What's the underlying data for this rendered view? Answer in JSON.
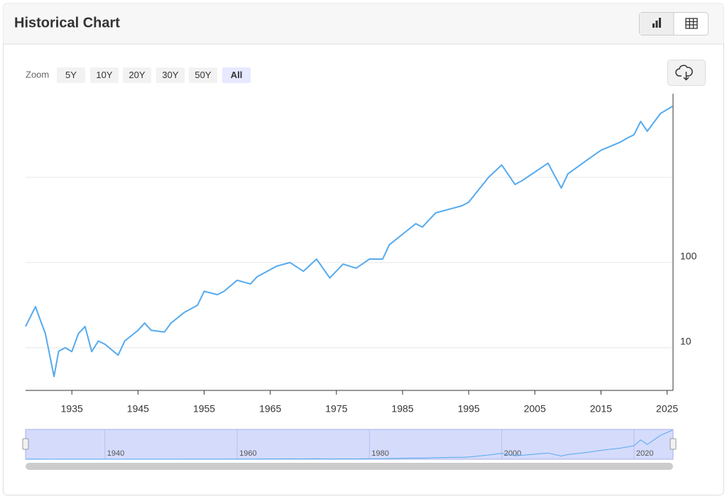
{
  "header": {
    "title": "Historical Chart"
  },
  "zoom": {
    "label": "Zoom",
    "buttons": [
      "5Y",
      "10Y",
      "20Y",
      "30Y",
      "50Y",
      "All"
    ],
    "selected": 5
  },
  "chart_data": {
    "type": "line",
    "log_scale": true,
    "grid": true,
    "x": [
      1928,
      1929.5,
      1930,
      1931,
      1932.3,
      1933,
      1934,
      1935,
      1936,
      1937,
      1938,
      1939,
      1940,
      1942,
      1943,
      1945,
      1946,
      1947,
      1949,
      1950,
      1952,
      1954,
      1955,
      1957,
      1958,
      1960,
      1962,
      1963,
      1966,
      1968,
      1970,
      1972,
      1974,
      1976,
      1978,
      1980,
      1982,
      1983,
      1987,
      1988,
      1990,
      1994,
      1995,
      1998,
      2000,
      2002,
      2003,
      2007,
      2009,
      2010,
      2013,
      2015,
      2018,
      2019,
      2020,
      2021,
      2022,
      2024,
      2025.8
    ],
    "series": [
      {
        "color": "#55aaee",
        "values": [
          17.8,
          30.4,
          23.7,
          14.7,
          4.6,
          9.1,
          10,
          9,
          14.7,
          17.8,
          9,
          12,
          11,
          8.2,
          12,
          16,
          19.5,
          16,
          15.3,
          19.5,
          26,
          31.6,
          46,
          42,
          46,
          62,
          56,
          68,
          91,
          100,
          79,
          110,
          66,
          96,
          86,
          110,
          110,
          162,
          286,
          261,
          383,
          464,
          511,
          1000,
          1400,
          825,
          909,
          1468,
          750,
          1100,
          1620,
          2080,
          2610,
          2900,
          3160,
          4530,
          3480,
          5620,
          6810
        ]
      }
    ],
    "xlim": [
      1928,
      2025.9
    ],
    "xticks": [
      1935,
      1945,
      1955,
      1965,
      1975,
      1985,
      1995,
      2005,
      2015,
      2025
    ],
    "ylim": [
      3.16,
      9600
    ],
    "yticks": [
      10,
      100
    ],
    "ygrid": [
      10,
      100,
      1000
    ],
    "navigator": {
      "ylim": [
        0,
        7000
      ],
      "xticks": [
        1940,
        1960,
        1980,
        2000,
        2020
      ]
    }
  }
}
